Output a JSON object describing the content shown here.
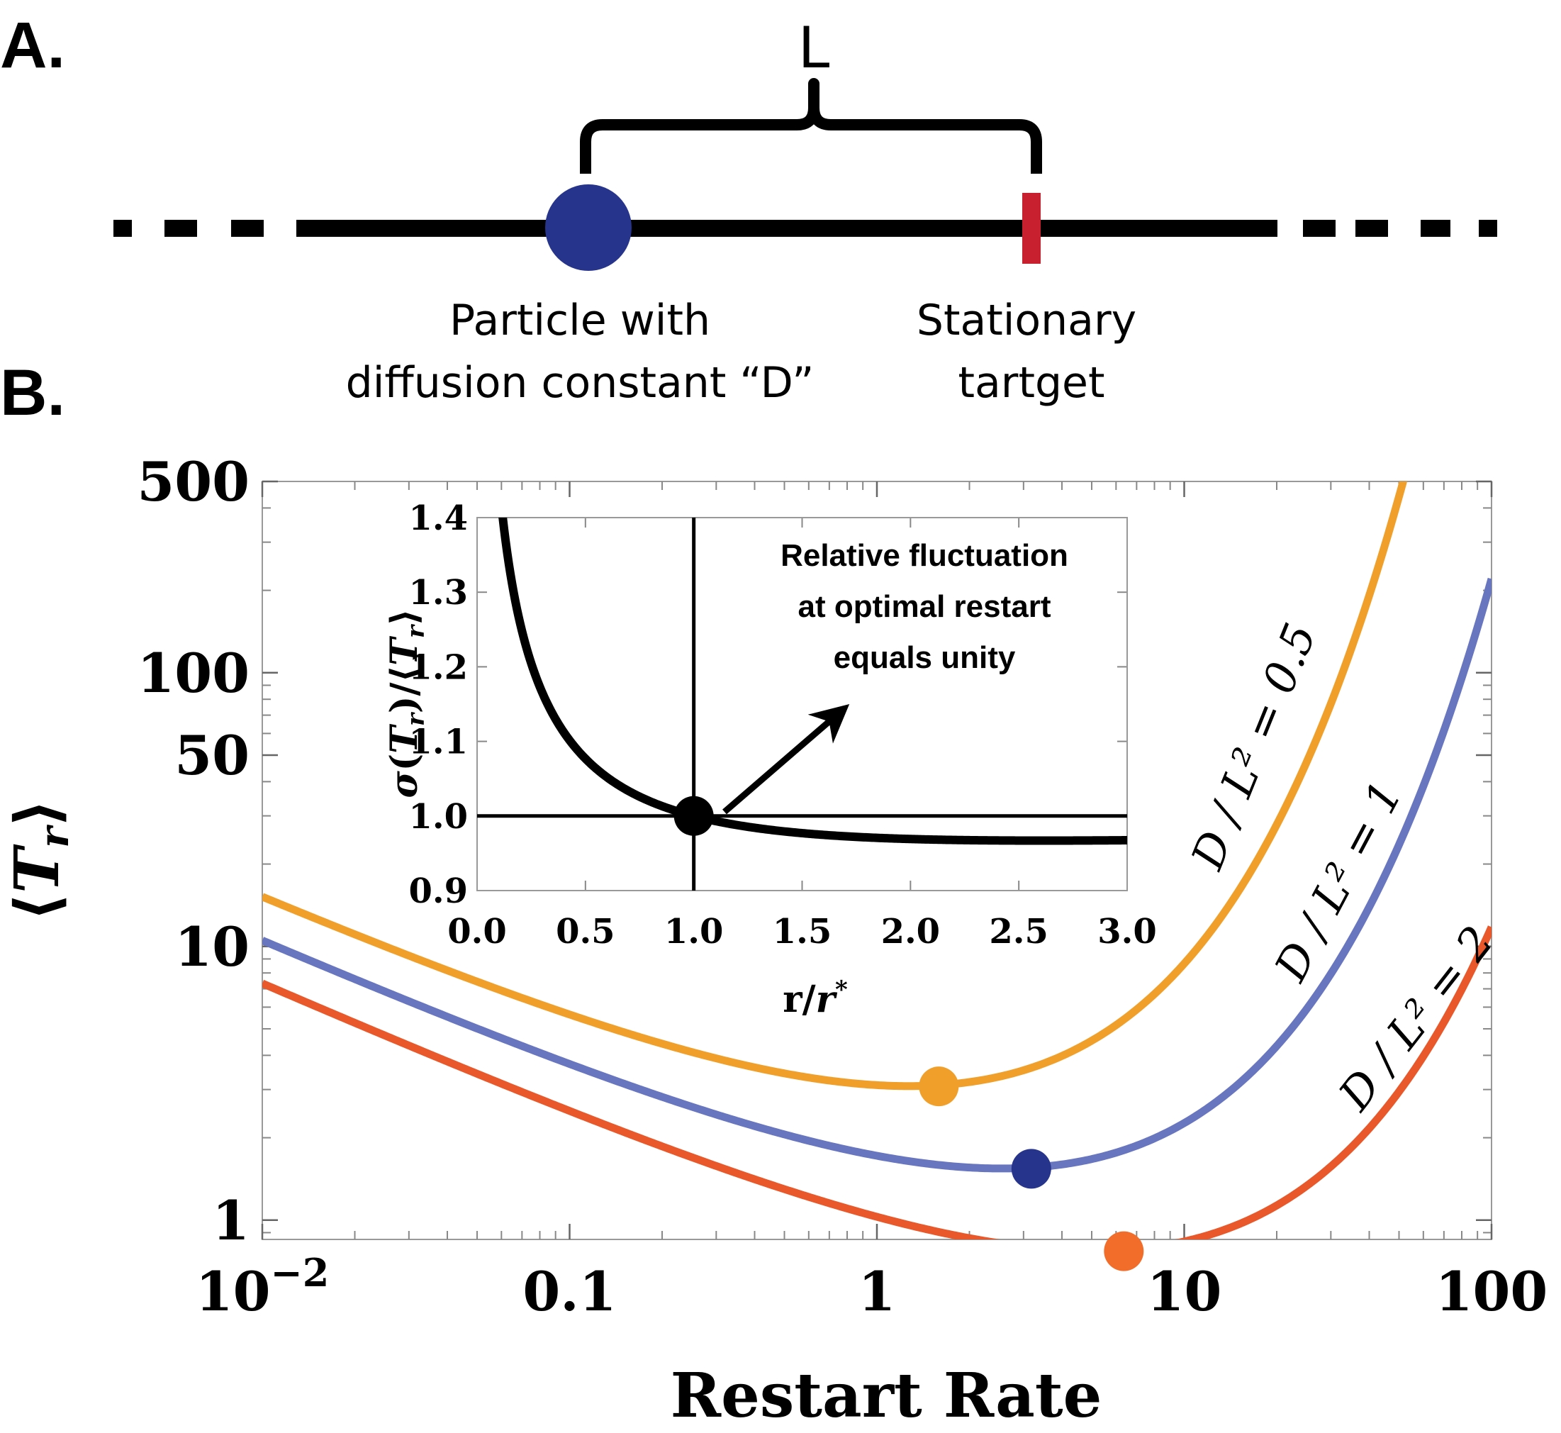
{
  "panel_a": {
    "label": "A.",
    "distance_label": "L",
    "particle_label_line1": "Particle with",
    "particle_label_line2": "diffusion constant “D”",
    "target_label_line1": "Stationary",
    "target_label_line2": "tartget",
    "colors": {
      "particle": "#27348b",
      "target": "#c8202f",
      "line": "#000000"
    }
  },
  "panel_b": {
    "label": "B."
  },
  "chart_data": [
    {
      "type": "line",
      "xlabel": "Restart Rate",
      "ylabel": "⟨T_r⟩",
      "xscale": "log",
      "yscale": "log",
      "xlim": [
        0.01,
        100
      ],
      "ylim": [
        0.85,
        500
      ],
      "x_ticks": [
        {
          "value": 0.01,
          "base": "10",
          "exp": "−2"
        },
        {
          "value": 0.1,
          "base": "0.1"
        },
        {
          "value": 1,
          "base": "1"
        },
        {
          "value": 10,
          "base": "10"
        },
        {
          "value": 100,
          "base": "100"
        }
      ],
      "y_ticks": [
        {
          "value": 1,
          "label": "1"
        },
        {
          "value": 10,
          "label": "10"
        },
        {
          "value": 50,
          "label": "50"
        },
        {
          "value": 100,
          "label": "100"
        },
        {
          "value": 500,
          "label": "500"
        }
      ],
      "series": [
        {
          "name": "D / L² = 0.5",
          "D_over_L2": 0.5,
          "color": "#f0a02a",
          "optimum": {
            "x": 1.59,
            "y": 3.08
          }
        },
        {
          "name": "D / L² = 1",
          "D_over_L2": 1,
          "color": "#6876c0",
          "optimum": {
            "x": 3.18,
            "y": 1.54
          }
        },
        {
          "name": "D / L² = 2",
          "D_over_L2": 2,
          "color": "#e8582a",
          "optimum": {
            "x": 6.36,
            "y": 0.77
          }
        }
      ],
      "optimum_marker_colors": [
        "#f0a02a",
        "#27348b",
        "#f26c2a"
      ]
    },
    {
      "type": "line",
      "role": "inset",
      "xlabel": "r/r*",
      "ylabel": "σ(T_r)/⟨T_r⟩",
      "xlim": [
        0,
        3
      ],
      "ylim": [
        0.9,
        1.4
      ],
      "x_ticks": [
        "0.0",
        "0.5",
        "1.0",
        "1.5",
        "2.0",
        "2.5",
        "3.0"
      ],
      "y_ticks": [
        "0.9",
        "1.0",
        "1.1",
        "1.2",
        "1.3",
        "1.4"
      ],
      "reference_lines": {
        "x": 1.0,
        "y": 1.0
      },
      "marker": {
        "x": 1.0,
        "y": 1.0
      },
      "annotation": {
        "line1": "Relative fluctuation",
        "line2": "at optimal restart",
        "line3": "equals unity"
      }
    }
  ]
}
